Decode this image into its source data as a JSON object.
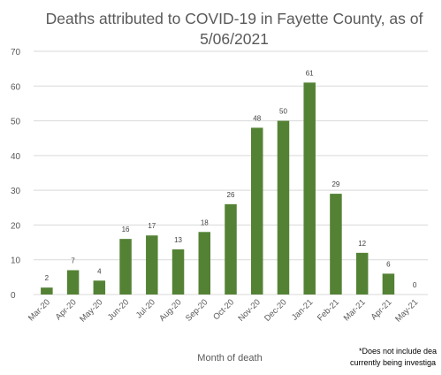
{
  "chart_title": {
    "line1": "Deaths attributed to COVID-19 in Fayette County, as of",
    "line2": "5/06/2021"
  },
  "x_axis_title": "Month of death",
  "footnote": {
    "line1": "*Does not include dea",
    "line2": "currently being investiga"
  },
  "colors": {
    "bar": "#548235",
    "gridline": "#d9d9d9",
    "axis_text": "#595959",
    "label_text": "#404040"
  },
  "chart_data": {
    "type": "bar",
    "title": "Deaths attributed to COVID-19 in Fayette County, as of 5/06/2021",
    "xlabel": "Month of death",
    "ylabel": "",
    "ylim": [
      0,
      70
    ],
    "yticks": [
      0,
      10,
      20,
      30,
      40,
      50,
      60,
      70
    ],
    "grid": true,
    "legend": "none",
    "categories": [
      "Mar-20",
      "Apr-20",
      "May-20",
      "Jun-20",
      "Jul-20",
      "Aug-20",
      "Sep-20",
      "Oct-20",
      "Nov-20",
      "Dec-20",
      "Jan-21",
      "Feb-21",
      "Mar-21",
      "Apr-21",
      "May-21"
    ],
    "values": [
      2,
      7,
      4,
      16,
      17,
      13,
      18,
      26,
      48,
      50,
      61,
      29,
      12,
      6,
      0
    ],
    "data_labels": true
  }
}
